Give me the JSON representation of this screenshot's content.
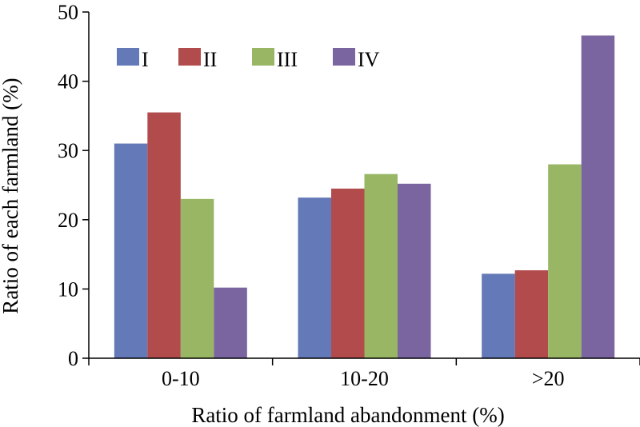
{
  "chart_data": {
    "type": "bar",
    "categories": [
      "0-10",
      "10-20",
      ">20"
    ],
    "series": [
      {
        "name": "I",
        "color": "#6479b7",
        "values": [
          31.0,
          23.2,
          12.2
        ]
      },
      {
        "name": "II",
        "color": "#b14b4c",
        "values": [
          35.5,
          24.5,
          12.7
        ]
      },
      {
        "name": "III",
        "color": "#98b663",
        "values": [
          23.0,
          26.6,
          28.0
        ]
      },
      {
        "name": "IV",
        "color": "#7b65a0",
        "values": [
          10.2,
          25.2,
          46.6
        ]
      }
    ],
    "xlabel": "Ratio of farmland abandonment (%)",
    "ylabel": "Ratio of each farmland (%)",
    "ylim": [
      0,
      50
    ],
    "yticks": [
      "0",
      "10",
      "20",
      "30",
      "40",
      "50"
    ],
    "grid": false,
    "legend_position": "top-left"
  }
}
